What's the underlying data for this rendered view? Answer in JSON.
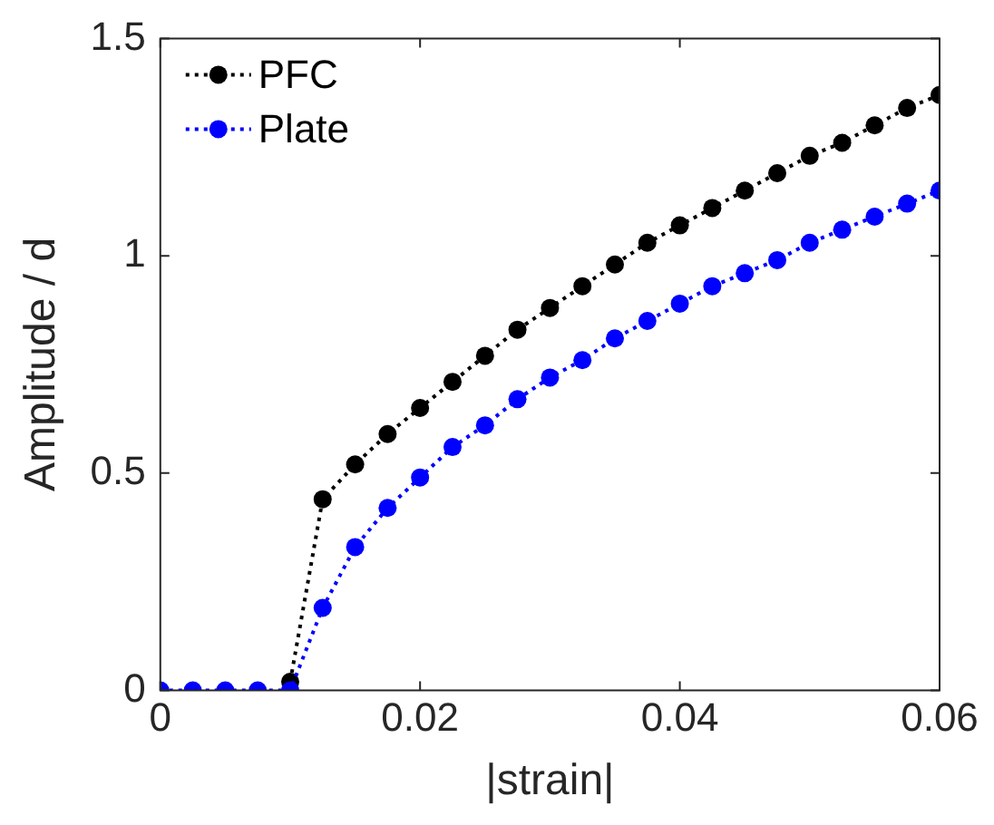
{
  "chart_data": {
    "type": "line",
    "xlabel": "|strain|",
    "ylabel": "Amplitude / d",
    "x": [
      0,
      0.0025,
      0.005,
      0.0075,
      0.01,
      0.0125,
      0.015,
      0.0175,
      0.02,
      0.0225,
      0.025,
      0.0275,
      0.03,
      0.0325,
      0.035,
      0.0375,
      0.04,
      0.0425,
      0.045,
      0.0475,
      0.05,
      0.0525,
      0.055,
      0.0575,
      0.06
    ],
    "series": [
      {
        "name": "PFC",
        "color": "#000000",
        "values": [
          null,
          null,
          null,
          null,
          0.02,
          0.44,
          0.52,
          0.59,
          0.65,
          0.71,
          0.77,
          0.83,
          0.88,
          0.93,
          0.98,
          1.03,
          1.07,
          1.11,
          1.15,
          1.19,
          1.23,
          1.26,
          1.3,
          1.34,
          1.37
        ]
      },
      {
        "name": "Plate",
        "color": "#0000ff",
        "values": [
          0,
          0,
          0,
          0,
          0,
          0.19,
          0.33,
          0.42,
          0.49,
          0.56,
          0.61,
          0.67,
          0.72,
          0.76,
          0.81,
          0.85,
          0.89,
          0.93,
          0.96,
          0.99,
          1.03,
          1.06,
          1.09,
          1.12,
          1.15
        ]
      }
    ],
    "xlim": [
      0,
      0.06
    ],
    "xticks": [
      0,
      0.02,
      0.04,
      0.06
    ],
    "ylim": [
      0,
      1.5
    ],
    "yticks": [
      0,
      0.5,
      1,
      1.5
    ],
    "grid": false,
    "legend": "top left",
    "marker": "circle",
    "line_style": "dotted"
  }
}
